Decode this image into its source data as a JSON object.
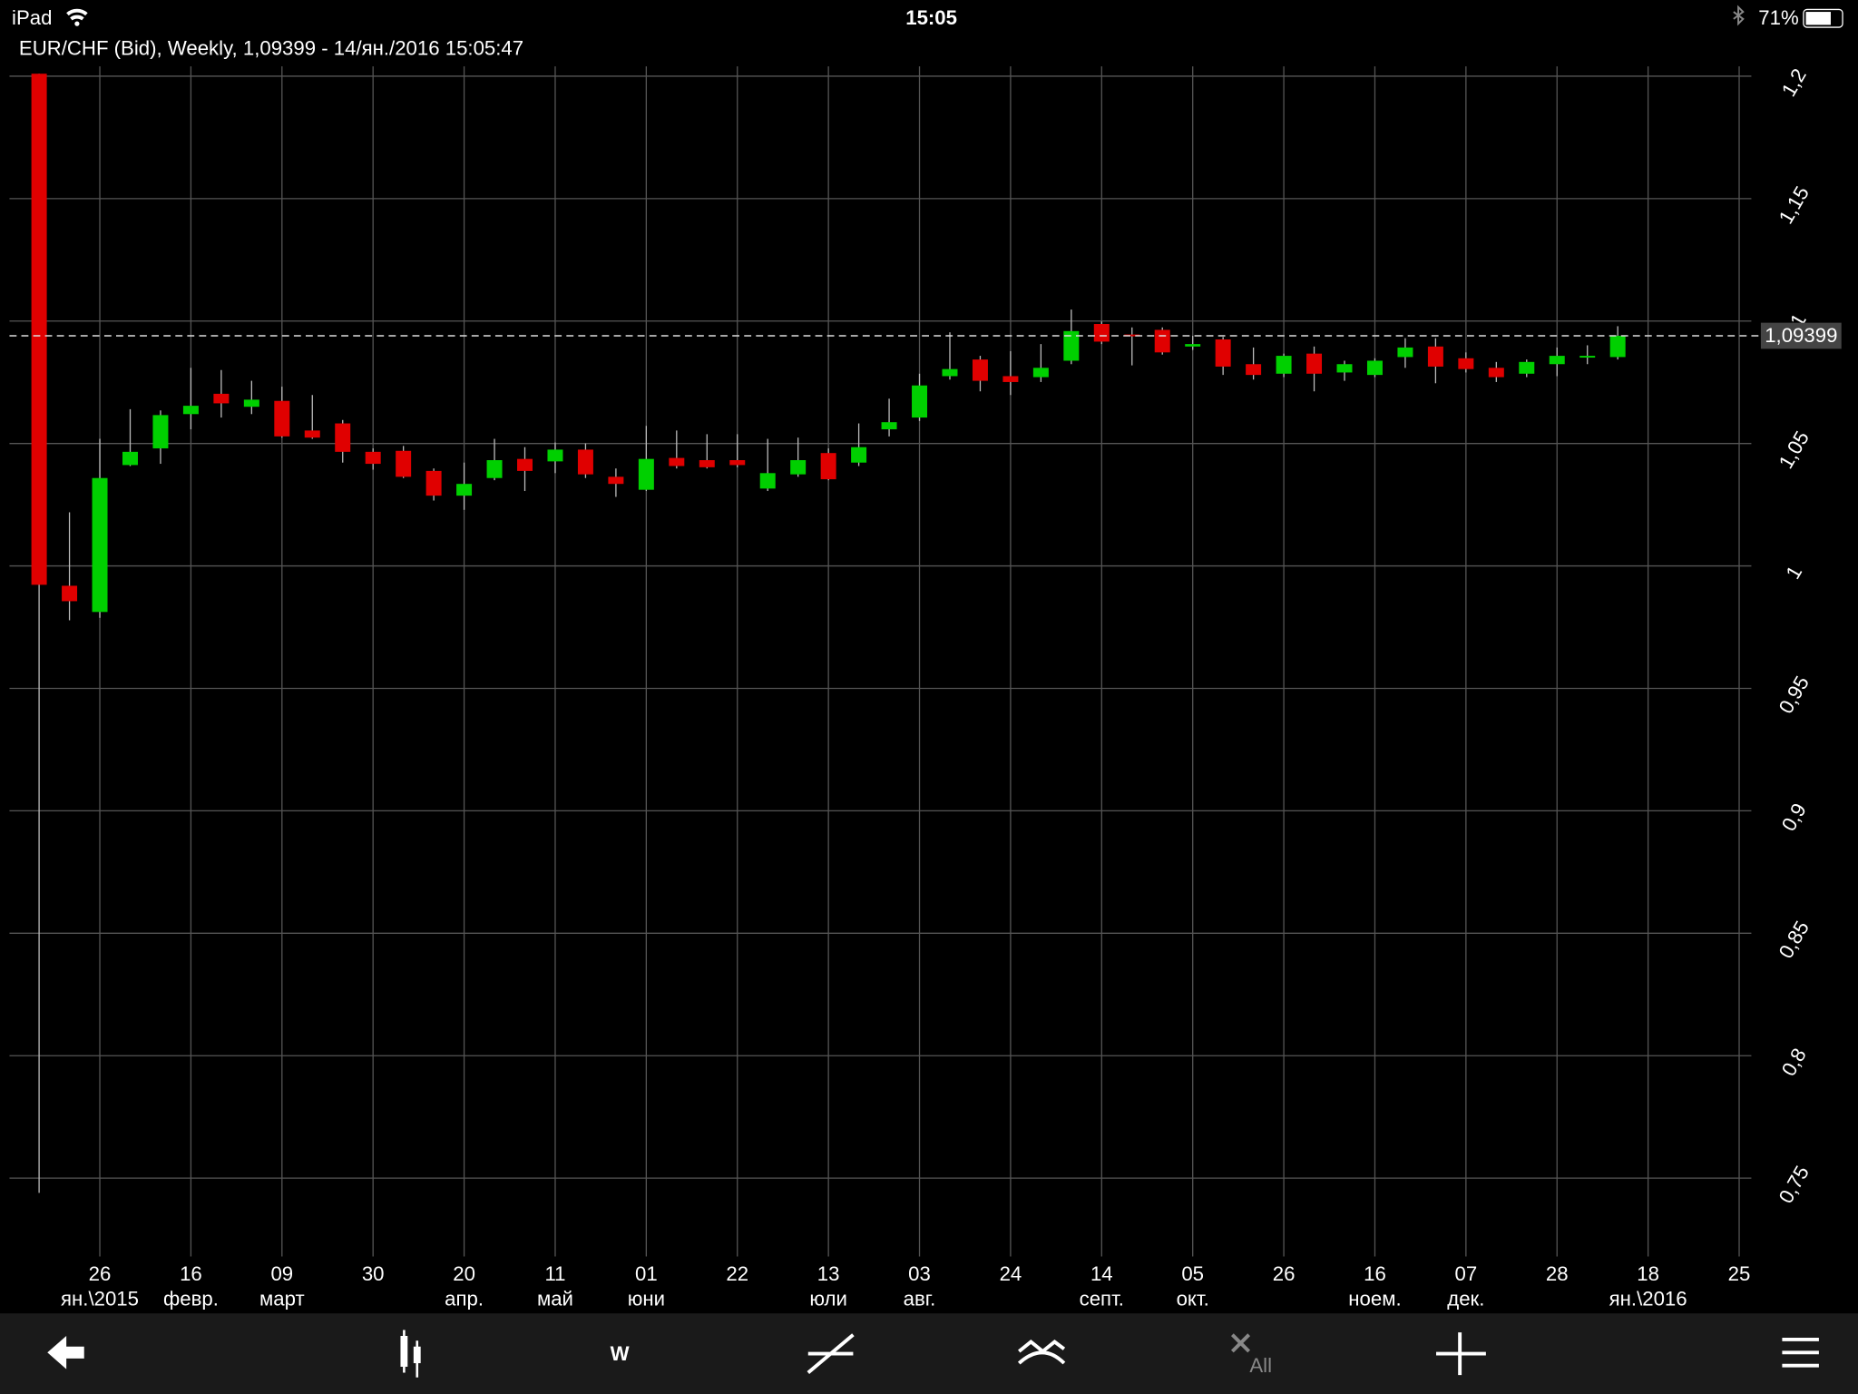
{
  "status_bar": {
    "device": "iPad",
    "time": "15:05",
    "battery": "71%"
  },
  "toolbar": {
    "period": "W",
    "clear": "All"
  },
  "chart_data": {
    "type": "candlestick",
    "title": "EUR/CHF (Bid), Weekly, 1,09399 - 14/ян./2016 15:05:47",
    "categories": [
      null,
      null,
      "26",
      null,
      null,
      "16",
      null,
      null,
      "09",
      null,
      null,
      "30",
      null,
      null,
      "20",
      null,
      null,
      "11",
      null,
      null,
      "01",
      null,
      null,
      "22",
      null,
      null,
      "13",
      null,
      null,
      "03",
      null,
      null,
      "24",
      null,
      null,
      "14",
      null,
      null,
      "05",
      null,
      null,
      "26",
      null,
      null,
      "16",
      null,
      null,
      "07",
      null,
      null,
      "28",
      null,
      null,
      "18",
      null,
      null,
      "25"
    ],
    "category_months": [
      null,
      null,
      "ян.\\2015",
      null,
      null,
      "февр.",
      null,
      null,
      "март",
      null,
      null,
      null,
      null,
      null,
      "апр.",
      null,
      null,
      "май",
      null,
      null,
      "юни",
      null,
      null,
      null,
      null,
      null,
      "юли",
      null,
      null,
      "авг.",
      null,
      null,
      null,
      null,
      null,
      "септ.",
      null,
      null,
      "окт.",
      null,
      null,
      null,
      null,
      null,
      "ноем.",
      null,
      null,
      "дек.",
      null,
      null,
      null,
      null,
      null,
      "ян.\\2016",
      null,
      null,
      null
    ],
    "open": [
      1.201,
      0.9919,
      0.9812,
      1.0412,
      1.048,
      1.062,
      1.0703,
      1.065,
      1.0674,
      1.0553,
      1.0582,
      1.0466,
      1.047,
      1.0388,
      1.0287,
      1.0359,
      1.0437,
      1.0427,
      1.0475,
      1.0364,
      1.0311,
      1.0441,
      1.0432,
      1.0432,
      1.0316,
      1.0374,
      1.0461,
      1.0422,
      1.0558,
      1.0606,
      1.0775,
      1.0843,
      1.0775,
      1.0771,
      1.0838,
      1.0988,
      1.0945,
      1.0964,
      1.0896,
      1.0925,
      1.0824,
      1.0785,
      1.0867,
      1.079,
      1.078,
      1.0853,
      1.0896,
      1.0848,
      1.0809,
      1.0785,
      1.0824,
      1.0856,
      1.0853,
      null,
      null,
      null,
      null
    ],
    "high": [
      1.201,
      1.0219,
      1.0519,
      1.064,
      1.0635,
      1.0809,
      1.08,
      1.0756,
      1.0732,
      1.0698,
      1.0596,
      1.048,
      1.049,
      1.0398,
      1.0422,
      1.0519,
      1.0485,
      1.0504,
      1.05,
      1.0398,
      1.0572,
      1.0553,
      1.0538,
      1.0538,
      1.0519,
      1.0524,
      1.048,
      1.0582,
      1.0683,
      1.0785,
      1.0954,
      1.0858,
      1.0877,
      1.0906,
      1.1047,
      1.0998,
      1.0974,
      1.0974,
      1.094,
      1.0935,
      1.0892,
      1.0867,
      1.0896,
      1.0838,
      1.0848,
      1.093,
      1.093,
      1.0872,
      1.0833,
      1.0843,
      1.0892,
      1.0901,
      1.0979,
      null,
      null,
      null,
      null
    ],
    "low": [
      0.744,
      0.9778,
      0.9788,
      1.0408,
      1.0417,
      1.0558,
      1.0606,
      1.062,
      1.0524,
      1.0519,
      1.0422,
      1.0393,
      1.0359,
      1.0267,
      1.0229,
      1.035,
      1.0306,
      1.0379,
      1.0359,
      1.0282,
      1.0306,
      1.0398,
      1.0398,
      1.0403,
      1.0306,
      1.0364,
      1.035,
      1.0408,
      1.0529,
      1.0592,
      1.0761,
      1.0713,
      1.0698,
      1.0751,
      1.0824,
      1.0906,
      1.0819,
      1.0863,
      1.0882,
      1.078,
      1.0761,
      1.0771,
      1.0713,
      1.0756,
      1.0771,
      1.0809,
      1.0746,
      1.079,
      1.0751,
      1.0771,
      1.0775,
      1.0824,
      1.0843,
      null,
      null,
      null,
      null
    ],
    "close": [
      0.9923,
      0.9856,
      1.0359,
      1.0466,
      1.0616,
      1.0654,
      1.0664,
      1.0679,
      1.0529,
      1.0524,
      1.0466,
      1.0417,
      1.0364,
      1.0287,
      1.0335,
      1.0432,
      1.0388,
      1.0475,
      1.0374,
      1.0335,
      1.0437,
      1.0408,
      1.0403,
      1.0412,
      1.0379,
      1.0432,
      1.0354,
      1.0485,
      1.0587,
      1.0737,
      1.0804,
      1.0756,
      1.0751,
      1.0809,
      1.0959,
      1.0916,
      1.0942,
      1.0872,
      1.0906,
      1.0814,
      1.078,
      1.0858,
      1.0785,
      1.0824,
      1.0838,
      1.0892,
      1.0814,
      1.0804,
      1.0771,
      1.0833,
      1.0858,
      1.0858,
      1.09399,
      null,
      null,
      null,
      null
    ],
    "up_color": "#00d000",
    "down_color": "#e00000",
    "current": {
      "value": 1.09399,
      "label": "1,09399"
    },
    "ylim": [
      0.718,
      1.204
    ],
    "yticks": [
      {
        "value": 0.75,
        "label": "0,75"
      },
      {
        "value": 0.8,
        "label": "0,8"
      },
      {
        "value": 0.85,
        "label": "0,85"
      },
      {
        "value": 0.9,
        "label": "0,9"
      },
      {
        "value": 0.95,
        "label": "0,95"
      },
      1,
      {
        "value": 1.05,
        "label": "1,05"
      },
      {
        "value": 1.1,
        "label": "1,1"
      },
      {
        "value": 1.15,
        "label": "1,15"
      },
      {
        "value": 1.2,
        "label": "1,2"
      }
    ],
    "grid": true
  }
}
